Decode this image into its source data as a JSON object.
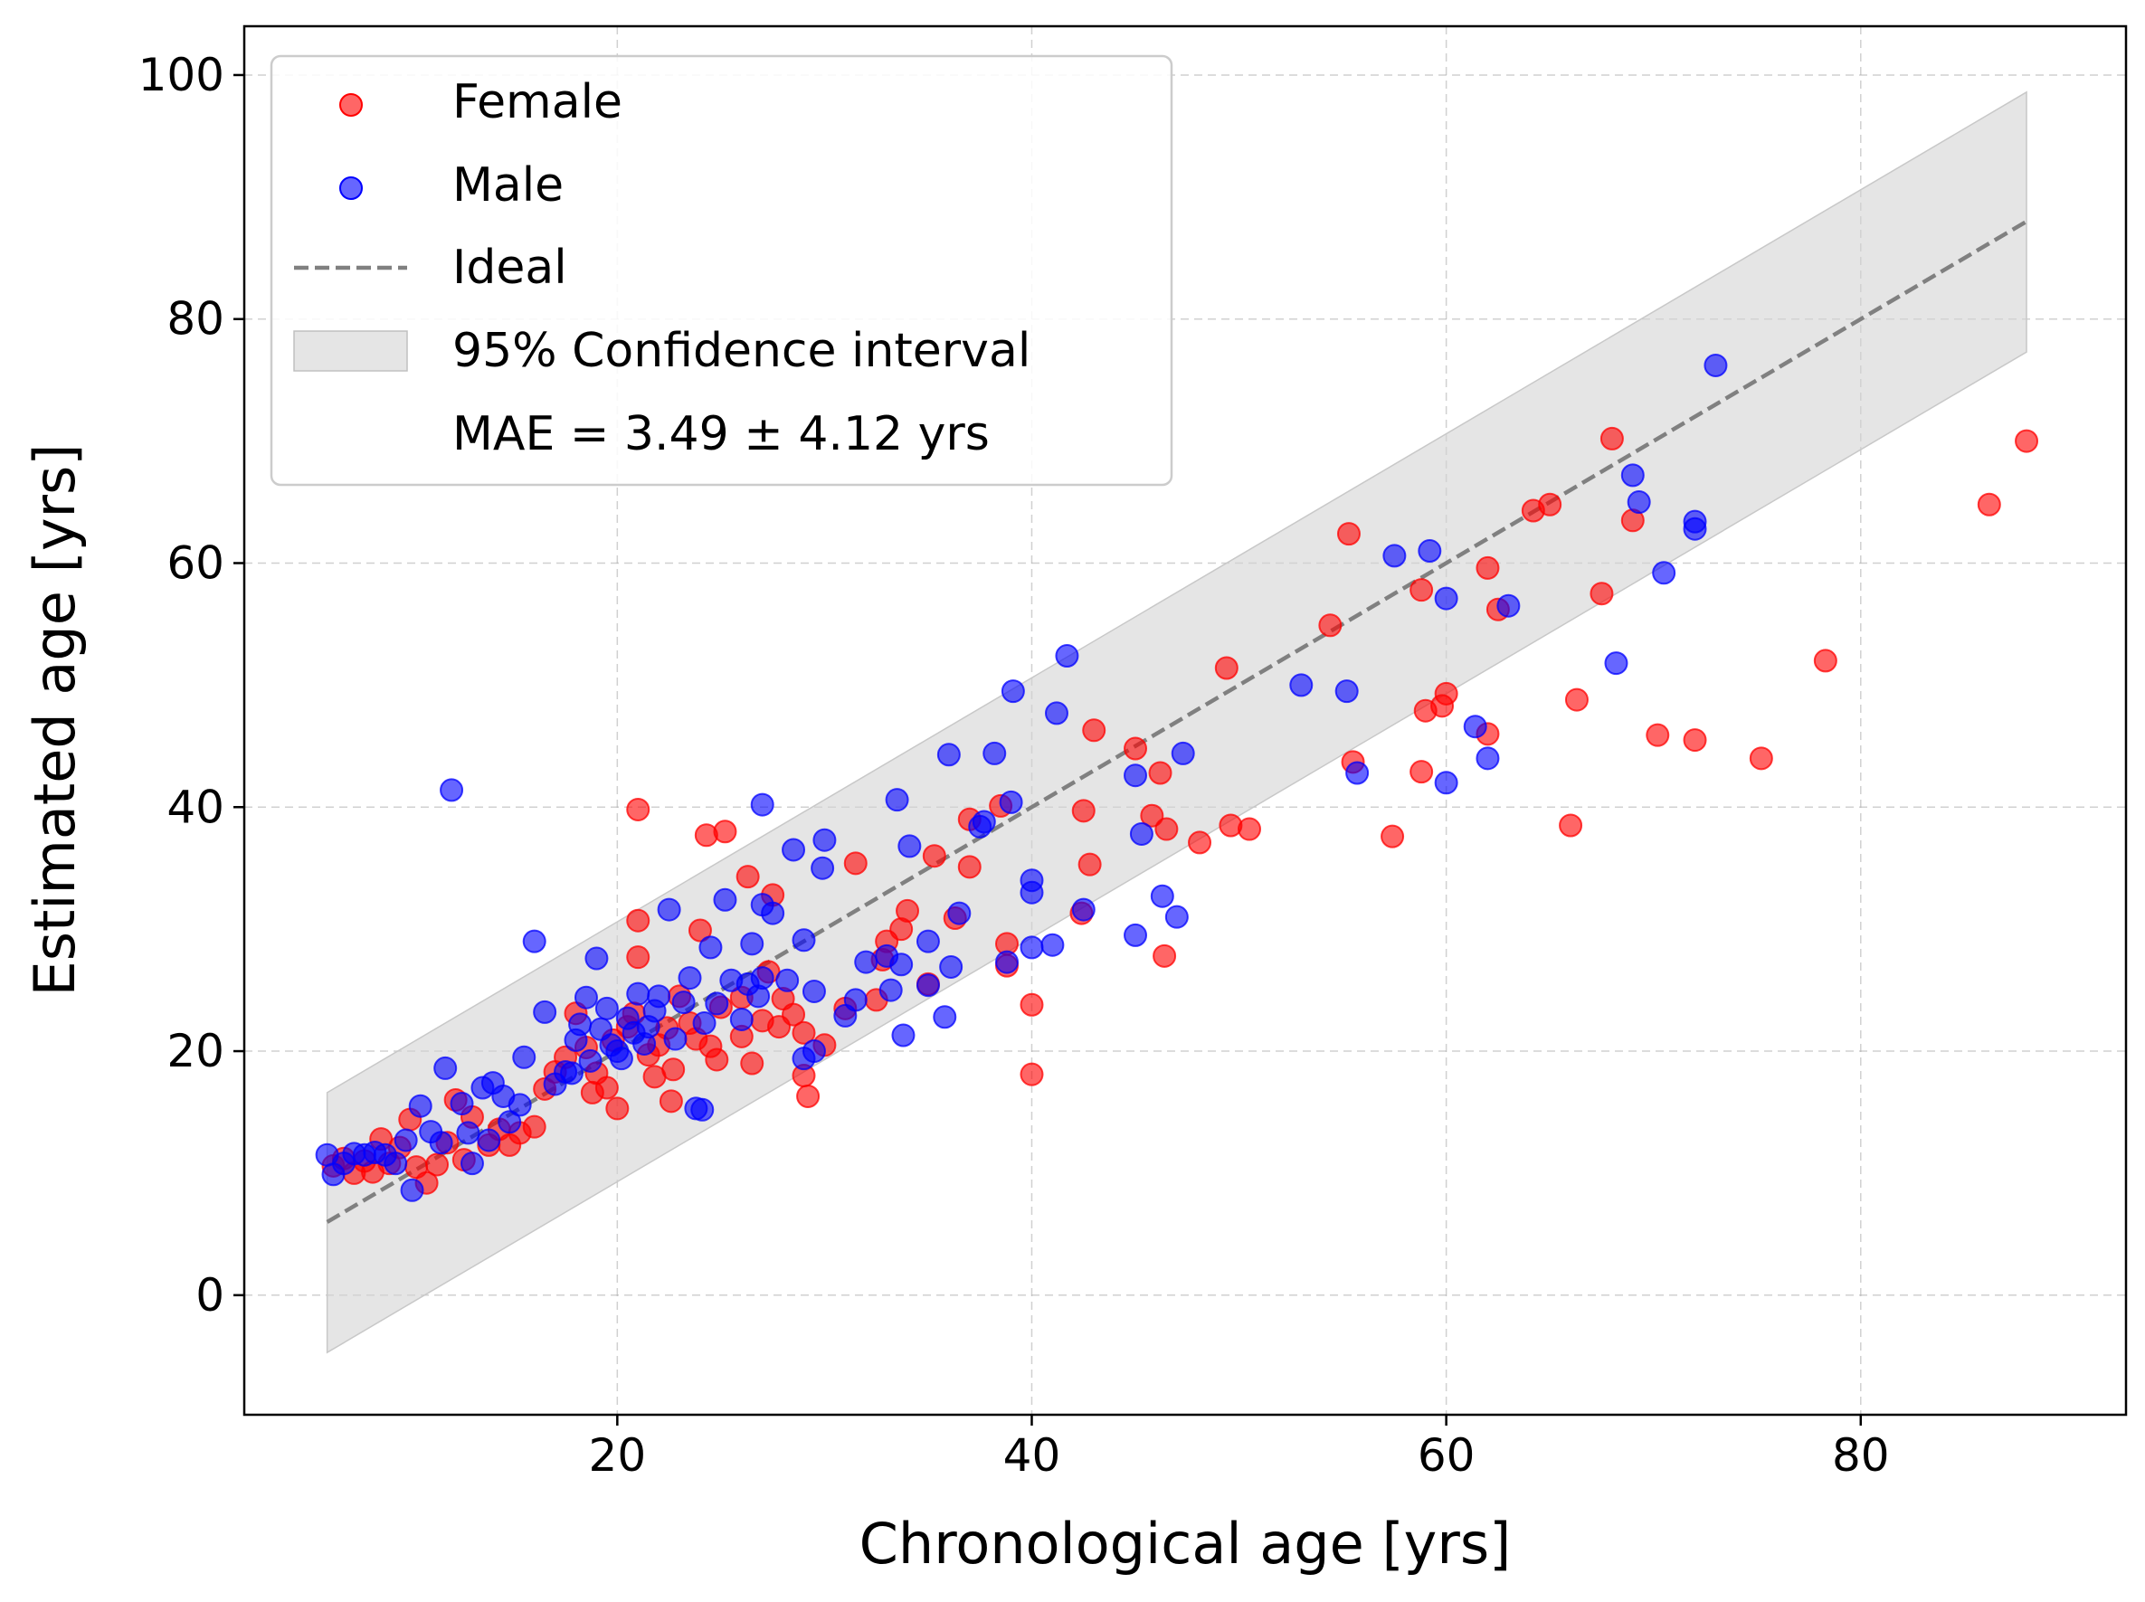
{
  "chart_data": {
    "type": "scatter",
    "xlabel": "Chronological age [yrs]",
    "ylabel": "Estimated age [yrs]",
    "xlim": [
      2,
      92.8
    ],
    "ylim": [
      -9.8,
      104
    ],
    "xticks": [
      20,
      40,
      60,
      80
    ],
    "yticks": [
      0,
      20,
      40,
      60,
      80,
      100
    ],
    "grid": true,
    "legend_position": "top-left",
    "legend": {
      "female": "Female",
      "male": "Male",
      "ideal": "Ideal",
      "ci": "95% Confidence interval",
      "mae": "MAE = 3.49 ± 4.12 yrs"
    },
    "ideal_line": {
      "x": [
        6,
        88
      ],
      "y": [
        6,
        88
      ],
      "color": "#808080",
      "style": "dashed"
    },
    "confidence_band": {
      "x": [
        6,
        88
      ],
      "lower_offset": -10.7,
      "upper_offset": 10.6,
      "color": "#d3d3d3"
    },
    "colors": {
      "female": "#ff0000",
      "male": "#0000ff"
    },
    "series": [
      {
        "name": "Female",
        "color": "#ff0000",
        "points": [
          [
            88.0,
            70.0
          ],
          [
            86.2,
            64.8
          ],
          [
            78.3,
            52.0
          ],
          [
            75.2,
            44.0
          ],
          [
            72.0,
            45.5
          ],
          [
            70.2,
            45.9
          ],
          [
            68.0,
            70.2
          ],
          [
            69.0,
            63.5
          ],
          [
            67.5,
            57.5
          ],
          [
            66.3,
            48.8
          ],
          [
            66.0,
            38.5
          ],
          [
            65.0,
            64.8
          ],
          [
            64.2,
            64.3
          ],
          [
            62.0,
            59.6
          ],
          [
            62.5,
            56.2
          ],
          [
            62.0,
            46.0
          ],
          [
            60.0,
            49.3
          ],
          [
            59.8,
            48.3
          ],
          [
            59.0,
            47.9
          ],
          [
            58.8,
            57.8
          ],
          [
            58.8,
            42.9
          ],
          [
            57.4,
            37.6
          ],
          [
            55.3,
            62.4
          ],
          [
            54.4,
            54.9
          ],
          [
            55.5,
            43.7
          ],
          [
            50.5,
            38.2
          ],
          [
            49.6,
            38.5
          ],
          [
            49.4,
            51.4
          ],
          [
            48.1,
            37.1
          ],
          [
            46.5,
            38.2
          ],
          [
            46.4,
            27.8
          ],
          [
            46.2,
            42.8
          ],
          [
            45.8,
            39.3
          ],
          [
            45.0,
            44.8
          ],
          [
            43.0,
            46.3
          ],
          [
            42.8,
            35.3
          ],
          [
            42.5,
            39.7
          ],
          [
            42.4,
            31.3
          ],
          [
            40.0,
            23.8
          ],
          [
            40.0,
            18.1
          ],
          [
            38.8,
            28.8
          ],
          [
            38.8,
            27.0
          ],
          [
            38.5,
            40.1
          ],
          [
            37.0,
            35.1
          ],
          [
            37.0,
            39.0
          ],
          [
            36.3,
            30.9
          ],
          [
            35.3,
            36.0
          ],
          [
            35.0,
            25.5
          ],
          [
            34.0,
            31.5
          ],
          [
            33.7,
            30.0
          ],
          [
            33.0,
            29.0
          ],
          [
            32.5,
            24.2
          ],
          [
            31.5,
            35.4
          ],
          [
            31.0,
            23.5
          ],
          [
            29.2,
            16.3
          ],
          [
            29.0,
            18.0
          ],
          [
            29.0,
            21.5
          ],
          [
            28.0,
            24.3
          ],
          [
            27.5,
            32.8
          ],
          [
            27.3,
            26.5
          ],
          [
            27.0,
            22.5
          ],
          [
            26.5,
            19.0
          ],
          [
            26.3,
            34.3
          ],
          [
            26.0,
            24.4
          ],
          [
            25.2,
            38.0
          ],
          [
            24.3,
            37.7
          ],
          [
            24.0,
            29.9
          ],
          [
            23.5,
            22.3
          ],
          [
            23.0,
            24.5
          ],
          [
            22.6,
            15.9
          ],
          [
            22.0,
            20.5
          ],
          [
            21.5,
            19.7
          ],
          [
            21.0,
            39.8
          ],
          [
            21.0,
            30.7
          ],
          [
            21.0,
            27.7
          ],
          [
            20.5,
            22.0
          ],
          [
            20.0,
            15.3
          ],
          [
            19.5,
            17.0
          ],
          [
            19.0,
            18.2
          ],
          [
            18.5,
            20.3
          ],
          [
            18.0,
            23.1
          ],
          [
            17.5,
            19.5
          ],
          [
            17.0,
            18.3
          ],
          [
            16.5,
            16.9
          ],
          [
            16.0,
            13.8
          ],
          [
            15.3,
            13.3
          ],
          [
            14.8,
            12.3
          ],
          [
            14.3,
            13.6
          ],
          [
            13.8,
            12.3
          ],
          [
            13.0,
            14.6
          ],
          [
            12.6,
            11.1
          ],
          [
            12.2,
            16.0
          ],
          [
            11.8,
            12.5
          ],
          [
            11.3,
            10.7
          ],
          [
            10.8,
            9.2
          ],
          [
            10.3,
            10.5
          ],
          [
            10.0,
            14.4
          ],
          [
            9.5,
            12.1
          ],
          [
            9.0,
            10.8
          ],
          [
            8.6,
            12.8
          ],
          [
            8.2,
            10.1
          ],
          [
            7.8,
            11.0
          ],
          [
            7.3,
            10.0
          ],
          [
            6.8,
            11.2
          ],
          [
            6.3,
            10.6
          ],
          [
            26.0,
            21.2
          ],
          [
            25.0,
            23.6
          ],
          [
            24.5,
            20.4
          ],
          [
            23.8,
            21.0
          ],
          [
            22.7,
            18.5
          ],
          [
            21.8,
            17.9
          ],
          [
            20.8,
            23.1
          ],
          [
            19.8,
            20.9
          ],
          [
            18.8,
            16.6
          ],
          [
            27.8,
            22.0
          ],
          [
            28.5,
            23.0
          ],
          [
            30.0,
            20.5
          ],
          [
            32.8,
            27.5
          ],
          [
            24.8,
            19.3
          ],
          [
            22.4,
            21.9
          ]
        ]
      },
      {
        "name": "Male",
        "color": "#0000ff",
        "points": [
          [
            73.0,
            76.2
          ],
          [
            72.0,
            63.4
          ],
          [
            72.0,
            62.8
          ],
          [
            70.5,
            59.2
          ],
          [
            69.3,
            65.0
          ],
          [
            69.0,
            67.2
          ],
          [
            68.2,
            51.8
          ],
          [
            63.0,
            56.5
          ],
          [
            62.0,
            44.0
          ],
          [
            61.4,
            46.6
          ],
          [
            60.0,
            57.1
          ],
          [
            60.0,
            42.0
          ],
          [
            59.2,
            61.0
          ],
          [
            57.5,
            60.6
          ],
          [
            55.7,
            42.8
          ],
          [
            55.2,
            49.5
          ],
          [
            53.0,
            50.0
          ],
          [
            47.3,
            44.4
          ],
          [
            47.0,
            31.0
          ],
          [
            46.3,
            32.7
          ],
          [
            45.3,
            37.8
          ],
          [
            45.0,
            42.6
          ],
          [
            45.0,
            29.5
          ],
          [
            42.5,
            31.6
          ],
          [
            41.7,
            52.4
          ],
          [
            41.2,
            47.7
          ],
          [
            41.0,
            28.7
          ],
          [
            40.0,
            34.0
          ],
          [
            40.0,
            33.0
          ],
          [
            40.0,
            28.5
          ],
          [
            39.1,
            49.5
          ],
          [
            39.0,
            40.4
          ],
          [
            38.8,
            27.3
          ],
          [
            38.2,
            44.4
          ],
          [
            37.5,
            38.4
          ],
          [
            37.7,
            38.8
          ],
          [
            36.5,
            31.3
          ],
          [
            36.1,
            26.9
          ],
          [
            36.0,
            44.3
          ],
          [
            35.8,
            22.8
          ],
          [
            35.0,
            29.0
          ],
          [
            34.1,
            36.8
          ],
          [
            33.7,
            27.1
          ],
          [
            33.5,
            40.6
          ],
          [
            33.8,
            21.3
          ],
          [
            33.2,
            25.0
          ],
          [
            33.0,
            27.8
          ],
          [
            32.0,
            27.3
          ],
          [
            31.0,
            22.9
          ],
          [
            30.0,
            37.3
          ],
          [
            29.9,
            35.0
          ],
          [
            29.0,
            19.4
          ],
          [
            29.5,
            20.0
          ],
          [
            29.0,
            29.1
          ],
          [
            28.5,
            36.5
          ],
          [
            27.5,
            31.3
          ],
          [
            27.0,
            40.2
          ],
          [
            27.0,
            32.0
          ],
          [
            26.5,
            28.8
          ],
          [
            26.3,
            25.5
          ],
          [
            26.0,
            22.6
          ],
          [
            25.2,
            32.4
          ],
          [
            24.5,
            28.5
          ],
          [
            24.1,
            15.2
          ],
          [
            23.8,
            15.3
          ],
          [
            23.5,
            26.0
          ],
          [
            22.5,
            31.6
          ],
          [
            22.0,
            24.5
          ],
          [
            21.5,
            22.0
          ],
          [
            21.0,
            24.7
          ],
          [
            20.5,
            22.7
          ],
          [
            20.0,
            20.0
          ],
          [
            19.5,
            23.5
          ],
          [
            19.0,
            27.6
          ],
          [
            18.5,
            24.4
          ],
          [
            18.0,
            20.9
          ],
          [
            17.5,
            18.3
          ],
          [
            17.0,
            17.3
          ],
          [
            16.5,
            23.2
          ],
          [
            16.0,
            29.0
          ],
          [
            15.5,
            19.5
          ],
          [
            14.5,
            16.3
          ],
          [
            14.0,
            17.4
          ],
          [
            13.5,
            17.0
          ],
          [
            13.0,
            10.8
          ],
          [
            12.5,
            15.7
          ],
          [
            12.0,
            41.4
          ],
          [
            11.7,
            18.6
          ],
          [
            11.5,
            12.5
          ],
          [
            11.0,
            13.4
          ],
          [
            10.5,
            15.5
          ],
          [
            10.1,
            8.6
          ],
          [
            9.8,
            12.7
          ],
          [
            9.3,
            10.8
          ],
          [
            8.8,
            11.5
          ],
          [
            8.3,
            11.7
          ],
          [
            7.8,
            11.5
          ],
          [
            7.3,
            11.6
          ],
          [
            6.8,
            10.8
          ],
          [
            6.3,
            9.9
          ],
          [
            6.0,
            11.5
          ],
          [
            27.0,
            26.0
          ],
          [
            26.8,
            24.5
          ],
          [
            25.5,
            25.8
          ],
          [
            24.8,
            23.9
          ],
          [
            24.2,
            22.3
          ],
          [
            23.2,
            24.0
          ],
          [
            22.8,
            21.0
          ],
          [
            21.8,
            23.3
          ],
          [
            21.3,
            20.6
          ],
          [
            20.8,
            21.5
          ],
          [
            20.2,
            19.4
          ],
          [
            19.7,
            20.5
          ],
          [
            19.2,
            21.8
          ],
          [
            18.7,
            19.2
          ],
          [
            18.2,
            22.2
          ],
          [
            17.8,
            18.2
          ],
          [
            15.3,
            15.6
          ],
          [
            14.8,
            14.2
          ],
          [
            13.8,
            12.7
          ],
          [
            12.8,
            13.3
          ],
          [
            28.2,
            25.8
          ],
          [
            29.5,
            24.9
          ],
          [
            31.5,
            24.2
          ],
          [
            35.0,
            25.4
          ]
        ]
      }
    ]
  }
}
